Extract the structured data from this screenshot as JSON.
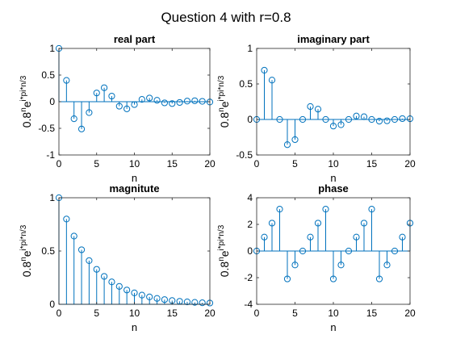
{
  "figure": {
    "title": "Question 4 with r=0.8"
  },
  "chart_data": [
    {
      "type": "stem",
      "title": "real part",
      "xlabel": "n",
      "ylabel_base": "0.8",
      "ylabel_sup1": "n",
      "ylabel_mid": "e",
      "ylabel_sup2": "i*pi*n/3",
      "xlim": [
        0,
        20
      ],
      "ylim": [
        -1,
        1
      ],
      "xticks": [
        0,
        5,
        10,
        15,
        20
      ],
      "yticks": [
        -1,
        -0.5,
        0,
        0.5,
        1
      ],
      "ytick_labels": [
        "-1",
        "-0.5",
        "0",
        "0.5",
        "1"
      ],
      "x": [
        0,
        1,
        2,
        3,
        4,
        5,
        6,
        7,
        8,
        9,
        10,
        11,
        12,
        13,
        14,
        15,
        16,
        17,
        18,
        19,
        20
      ],
      "values": [
        1,
        0.4,
        -0.32,
        -0.512,
        -0.205,
        0.164,
        0.262,
        0.105,
        -0.084,
        -0.134,
        -0.054,
        0.043,
        0.069,
        0.027,
        -0.022,
        -0.035,
        -0.014,
        0.011,
        0.018,
        0.007,
        -0.006
      ]
    },
    {
      "type": "stem",
      "title": "imaginary part",
      "xlabel": "n",
      "ylabel_base": "0.8",
      "ylabel_sup1": "n",
      "ylabel_mid": "e",
      "ylabel_sup2": "i*pi*n/3",
      "xlim": [
        0,
        20
      ],
      "ylim": [
        -0.5,
        1
      ],
      "xticks": [
        0,
        5,
        10,
        15,
        20
      ],
      "yticks": [
        -0.5,
        0,
        0.5,
        1
      ],
      "ytick_labels": [
        "-0.5",
        "0",
        "0.5",
        "1"
      ],
      "x": [
        0,
        1,
        2,
        3,
        4,
        5,
        6,
        7,
        8,
        9,
        10,
        11,
        12,
        13,
        14,
        15,
        16,
        17,
        18,
        19,
        20
      ],
      "values": [
        0,
        0.693,
        0.554,
        0,
        -0.355,
        -0.284,
        0,
        0.182,
        0.145,
        0,
        -0.093,
        -0.074,
        0,
        0.048,
        0.038,
        0,
        -0.024,
        -0.019,
        0,
        0.012,
        0.01
      ]
    },
    {
      "type": "stem",
      "title": "magnitute",
      "xlabel": "n",
      "ylabel_base": "0.8",
      "ylabel_sup1": "n",
      "ylabel_mid": "e",
      "ylabel_sup2": "i*pi*n/3",
      "xlim": [
        0,
        20
      ],
      "ylim": [
        0,
        1
      ],
      "xticks": [
        0,
        5,
        10,
        15,
        20
      ],
      "yticks": [
        0,
        0.5,
        1
      ],
      "ytick_labels": [
        "0",
        "0.5",
        "1"
      ],
      "x": [
        0,
        1,
        2,
        3,
        4,
        5,
        6,
        7,
        8,
        9,
        10,
        11,
        12,
        13,
        14,
        15,
        16,
        17,
        18,
        19,
        20
      ],
      "values": [
        1,
        0.8,
        0.64,
        0.512,
        0.41,
        0.328,
        0.262,
        0.21,
        0.168,
        0.134,
        0.107,
        0.086,
        0.069,
        0.055,
        0.044,
        0.035,
        0.028,
        0.023,
        0.018,
        0.014,
        0.012
      ]
    },
    {
      "type": "stem",
      "title": "phase",
      "xlabel": "n",
      "ylabel_base": "0.8",
      "ylabel_sup1": "n",
      "ylabel_mid": "e",
      "ylabel_sup2": "i*pi*n/3",
      "xlim": [
        0,
        20
      ],
      "ylim": [
        -4,
        4
      ],
      "xticks": [
        0,
        5,
        10,
        15,
        20
      ],
      "yticks": [
        -4,
        -2,
        0,
        2,
        4
      ],
      "ytick_labels": [
        "-4",
        "-2",
        "0",
        "2",
        "4"
      ],
      "x": [
        0,
        1,
        2,
        3,
        4,
        5,
        6,
        7,
        8,
        9,
        10,
        11,
        12,
        13,
        14,
        15,
        16,
        17,
        18,
        19,
        20
      ],
      "values": [
        0,
        1.047,
        2.094,
        3.142,
        -2.094,
        -1.047,
        0,
        1.047,
        2.094,
        3.142,
        -2.094,
        -1.047,
        0,
        1.047,
        2.094,
        3.142,
        -2.094,
        -1.047,
        0,
        1.047,
        2.094
      ]
    }
  ],
  "style": {
    "stem_color": "#0072bd",
    "axis_color": "#262626",
    "background": "#ffffff"
  }
}
